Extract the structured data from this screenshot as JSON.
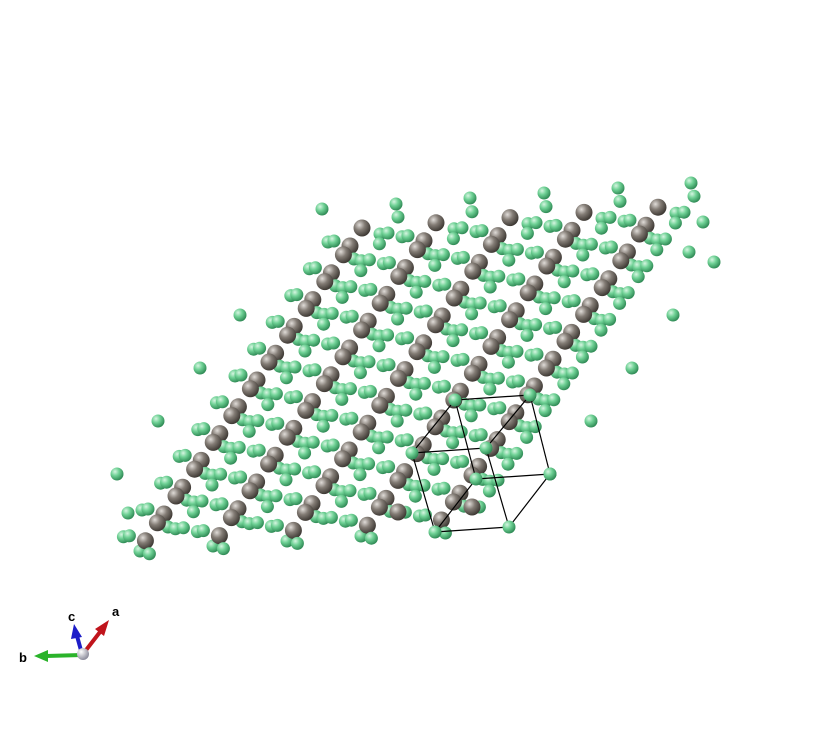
{
  "viewer": {
    "background": "#ffffff",
    "structure": {
      "atom_species": [
        {
          "name": "green-atom",
          "color": "#5cc584",
          "highlight": "#c9f0d6",
          "edge": "#2f7d4c"
        },
        {
          "name": "gray-atom",
          "color": "#7a746e",
          "highlight": "#d6d2ce",
          "edge": "#3f3a36"
        }
      ],
      "unit_cell_line_color": "#000000"
    },
    "axes": {
      "a": {
        "label": "a",
        "color": "#c0141c"
      },
      "b": {
        "label": "b",
        "color": "#2ab32a"
      },
      "c": {
        "label": "c",
        "color": "#1d1dc8"
      },
      "origin_color": "#b9b9c9"
    }
  }
}
